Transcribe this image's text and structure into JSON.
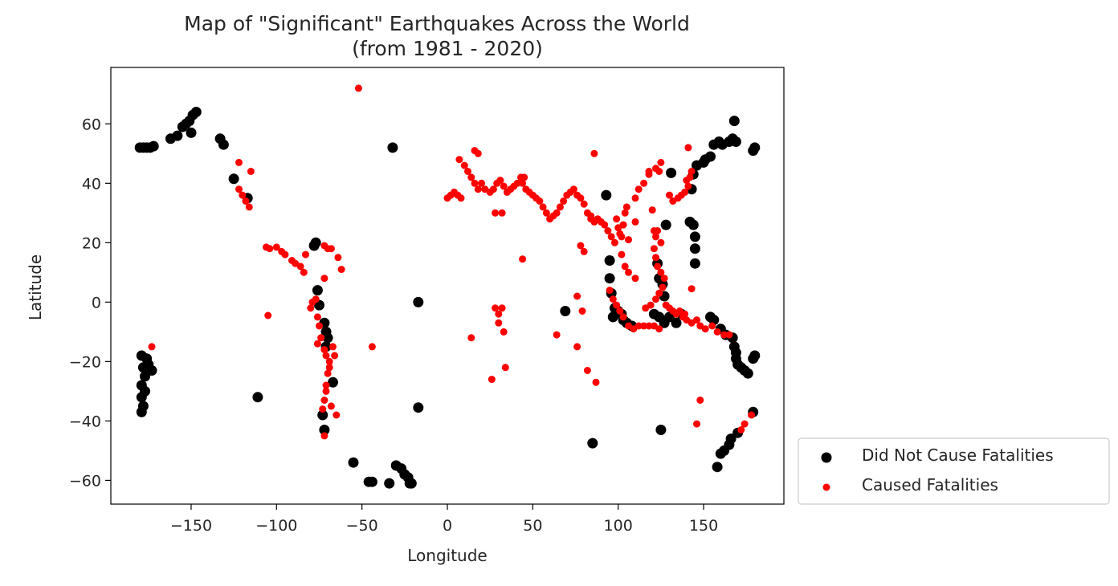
{
  "chart_data": {
    "type": "scatter",
    "title": "Map of \"Significant\" Earthquakes Across the World",
    "subtitle": "(from 1981 - 2020)",
    "xlabel": "Longitude",
    "ylabel": "Latitude",
    "xlim": [
      -197,
      197
    ],
    "ylim": [
      -68,
      79
    ],
    "xticks": [
      -150,
      -100,
      -50,
      0,
      50,
      100,
      150
    ],
    "yticks": [
      -60,
      -40,
      -20,
      0,
      20,
      40,
      60
    ],
    "xtick_labels": [
      "−150",
      "−100",
      "−50",
      "0",
      "50",
      "100",
      "150"
    ],
    "ytick_labels": [
      "−60",
      "−40",
      "−20",
      "0",
      "20",
      "40",
      "60"
    ],
    "grid": false,
    "legend_position": "outside-lower-right",
    "series": [
      {
        "name": "Did Not Cause Fatalities",
        "color": "#000000",
        "points": [
          [
            -180,
            52
          ],
          [
            -178,
            52
          ],
          [
            -176,
            52
          ],
          [
            -174,
            52
          ],
          [
            -172,
            52.5
          ],
          [
            -162,
            55
          ],
          [
            -158,
            56
          ],
          [
            -155,
            59
          ],
          [
            -153,
            60
          ],
          [
            -151,
            61
          ],
          [
            -149,
            63
          ],
          [
            -147,
            64
          ],
          [
            -150,
            57
          ],
          [
            -133,
            55
          ],
          [
            -131,
            53
          ],
          [
            -125,
            41.5
          ],
          [
            -117,
            35
          ],
          [
            -32,
            52
          ],
          [
            -179,
            -18
          ],
          [
            -178,
            -22
          ],
          [
            -177,
            -25
          ],
          [
            -179,
            -28
          ],
          [
            -177,
            -30
          ],
          [
            -179,
            -32
          ],
          [
            -178,
            -35
          ],
          [
            -179,
            -37
          ],
          [
            -175,
            -21
          ],
          [
            -173,
            -23
          ],
          [
            -176,
            -19
          ],
          [
            -111,
            -32
          ],
          [
            -17,
            0
          ],
          [
            -17,
            -35.5
          ],
          [
            -55,
            -54
          ],
          [
            -46,
            -60.5
          ],
          [
            -44,
            -60.5
          ],
          [
            -34,
            -61
          ],
          [
            -30,
            -55
          ],
          [
            -27,
            -56
          ],
          [
            -25,
            -58
          ],
          [
            -23,
            -59
          ],
          [
            -21,
            -61
          ],
          [
            -22,
            -61
          ],
          [
            -78,
            19
          ],
          [
            -77,
            20
          ],
          [
            -76,
            4
          ],
          [
            -75,
            -1
          ],
          [
            -72,
            -7
          ],
          [
            -71,
            -10
          ],
          [
            -70,
            -12
          ],
          [
            -71,
            -15
          ],
          [
            -73,
            -38
          ],
          [
            -72,
            -43
          ],
          [
            -67,
            -27
          ],
          [
            69,
            -3
          ],
          [
            93,
            36
          ],
          [
            95,
            14
          ],
          [
            95,
            8
          ],
          [
            96,
            3
          ],
          [
            98,
            -2
          ],
          [
            97,
            -5
          ],
          [
            100,
            -3
          ],
          [
            102,
            -4
          ],
          [
            103,
            -6
          ],
          [
            105,
            -7
          ],
          [
            108,
            -8
          ],
          [
            121,
            -4
          ],
          [
            124,
            -5
          ],
          [
            127,
            -7
          ],
          [
            130,
            -5
          ],
          [
            134,
            -7
          ],
          [
            137,
            -4
          ],
          [
            123,
            13
          ],
          [
            124,
            8
          ],
          [
            126,
            6
          ],
          [
            127,
            2
          ],
          [
            128,
            26
          ],
          [
            131,
            43.5
          ],
          [
            142,
            27
          ],
          [
            144,
            26
          ],
          [
            145,
            22
          ],
          [
            145,
            18
          ],
          [
            145,
            13
          ],
          [
            143,
            38
          ],
          [
            144,
            43
          ],
          [
            146,
            46
          ],
          [
            150,
            47
          ],
          [
            151,
            48
          ],
          [
            154,
            49
          ],
          [
            156,
            53
          ],
          [
            159,
            54
          ],
          [
            161,
            53
          ],
          [
            165,
            54
          ],
          [
            167,
            55
          ],
          [
            169,
            54
          ],
          [
            168,
            61
          ],
          [
            179,
            51
          ],
          [
            180,
            52
          ],
          [
            154,
            -5
          ],
          [
            156,
            -6
          ],
          [
            160,
            -9
          ],
          [
            163,
            -11
          ],
          [
            167,
            -12
          ],
          [
            168,
            -15
          ],
          [
            169,
            -17
          ],
          [
            169,
            -19
          ],
          [
            170,
            -21
          ],
          [
            172,
            -22
          ],
          [
            174,
            -23
          ],
          [
            176,
            -24
          ],
          [
            179,
            -19
          ],
          [
            180,
            -18
          ],
          [
            179,
            -37
          ],
          [
            170,
            -44
          ],
          [
            166,
            -46
          ],
          [
            165,
            -48
          ],
          [
            162,
            -50
          ],
          [
            160,
            -51
          ],
          [
            158,
            -55.5
          ],
          [
            85,
            -47.5
          ],
          [
            125,
            -43
          ]
        ]
      },
      {
        "name": "Caused Fatalities",
        "color": "#ff0000",
        "points": [
          [
            -52,
            72
          ],
          [
            -122,
            47
          ],
          [
            -122,
            38
          ],
          [
            -120,
            36
          ],
          [
            -118,
            34
          ],
          [
            -116,
            32
          ],
          [
            -115,
            44
          ],
          [
            -106,
            18.5
          ],
          [
            -104,
            18
          ],
          [
            -100,
            18.5
          ],
          [
            -97,
            17
          ],
          [
            -95,
            16
          ],
          [
            -91,
            14
          ],
          [
            -89,
            13
          ],
          [
            -86,
            12
          ],
          [
            -84,
            10
          ],
          [
            -83,
            16
          ],
          [
            -80,
            -2
          ],
          [
            -79,
            0
          ],
          [
            -77,
            1
          ],
          [
            -76,
            -5
          ],
          [
            -75,
            -8
          ],
          [
            -74,
            -12
          ],
          [
            -76,
            -14
          ],
          [
            -72,
            -16
          ],
          [
            -71,
            -18
          ],
          [
            -69,
            -20
          ],
          [
            -70,
            -24
          ],
          [
            -71,
            -28
          ],
          [
            -71,
            -30
          ],
          [
            -72,
            -33
          ],
          [
            -73,
            -36
          ],
          [
            -72,
            -45
          ],
          [
            -67,
            -15
          ],
          [
            -66,
            -18
          ],
          [
            -69,
            -22
          ],
          [
            -68,
            -35
          ],
          [
            -65,
            -38
          ],
          [
            -72,
            19
          ],
          [
            -70,
            18
          ],
          [
            -68,
            18
          ],
          [
            -64,
            15
          ],
          [
            -62,
            11
          ],
          [
            -72,
            8
          ],
          [
            -105,
            -4.5
          ],
          [
            -173,
            -15
          ],
          [
            -44,
            -15
          ],
          [
            7,
            48
          ],
          [
            10,
            46
          ],
          [
            12,
            44
          ],
          [
            14,
            42
          ],
          [
            16,
            40
          ],
          [
            18,
            38
          ],
          [
            20,
            40
          ],
          [
            22,
            38
          ],
          [
            25,
            37
          ],
          [
            27,
            38
          ],
          [
            29,
            40
          ],
          [
            31,
            41
          ],
          [
            33,
            39
          ],
          [
            35,
            37
          ],
          [
            37,
            38
          ],
          [
            39,
            39
          ],
          [
            41,
            40
          ],
          [
            43,
            42
          ],
          [
            45,
            42
          ],
          [
            44,
            40
          ],
          [
            46,
            38
          ],
          [
            48,
            37
          ],
          [
            50,
            36
          ],
          [
            52,
            35
          ],
          [
            54,
            34
          ],
          [
            56,
            32
          ],
          [
            58,
            30
          ],
          [
            60,
            28
          ],
          [
            62,
            29
          ],
          [
            64,
            30
          ],
          [
            66,
            32
          ],
          [
            68,
            34
          ],
          [
            70,
            36
          ],
          [
            72,
            37
          ],
          [
            74,
            38
          ],
          [
            76,
            36
          ],
          [
            78,
            35
          ],
          [
            80,
            33
          ],
          [
            82,
            30
          ],
          [
            84,
            29
          ],
          [
            86,
            27
          ],
          [
            88,
            28
          ],
          [
            90,
            27
          ],
          [
            92,
            26
          ],
          [
            94,
            24
          ],
          [
            96,
            22
          ],
          [
            98,
            20
          ],
          [
            99,
            28
          ],
          [
            100,
            25
          ],
          [
            101,
            23
          ],
          [
            102,
            22
          ],
          [
            103,
            26
          ],
          [
            104,
            30
          ],
          [
            105,
            32
          ],
          [
            110,
            35
          ],
          [
            112,
            38
          ],
          [
            115,
            40
          ],
          [
            118,
            44
          ],
          [
            122,
            45
          ],
          [
            125,
            47
          ],
          [
            16,
            51
          ],
          [
            18,
            50
          ],
          [
            86,
            50
          ],
          [
            0,
            35
          ],
          [
            2,
            36
          ],
          [
            4,
            37
          ],
          [
            6,
            36
          ],
          [
            8,
            35
          ],
          [
            28,
            30
          ],
          [
            32,
            30
          ],
          [
            44,
            14.5
          ],
          [
            14,
            -12
          ],
          [
            28,
            -2
          ],
          [
            30,
            -4
          ],
          [
            32,
            -2
          ],
          [
            30,
            -7
          ],
          [
            33,
            -10
          ],
          [
            34,
            -22
          ],
          [
            26,
            -26
          ],
          [
            64,
            -11
          ],
          [
            76,
            -15
          ],
          [
            82,
            -23
          ],
          [
            87,
            -27
          ],
          [
            76,
            2
          ],
          [
            79,
            -3
          ],
          [
            80,
            17
          ],
          [
            78,
            19
          ],
          [
            95,
            4
          ],
          [
            97,
            1
          ],
          [
            99,
            -1
          ],
          [
            101,
            -3
          ],
          [
            103,
            -5
          ],
          [
            106,
            -8
          ],
          [
            109,
            -9
          ],
          [
            112,
            -8
          ],
          [
            115,
            -8
          ],
          [
            118,
            -8
          ],
          [
            121,
            -8
          ],
          [
            124,
            -9
          ],
          [
            119,
            -1
          ],
          [
            122,
            1
          ],
          [
            124,
            3
          ],
          [
            126,
            5
          ],
          [
            127,
            8
          ],
          [
            125,
            10
          ],
          [
            123,
            12
          ],
          [
            122,
            15
          ],
          [
            121,
            18
          ],
          [
            122,
            22
          ],
          [
            123,
            24
          ],
          [
            121,
            24
          ],
          [
            125,
            20
          ],
          [
            128,
            -1
          ],
          [
            130,
            -2
          ],
          [
            132,
            -3
          ],
          [
            134,
            -4
          ],
          [
            136,
            -3
          ],
          [
            138,
            -5
          ],
          [
            140,
            -6
          ],
          [
            143,
            -7
          ],
          [
            146,
            -6
          ],
          [
            148,
            -8
          ],
          [
            151,
            -9
          ],
          [
            155,
            -8
          ],
          [
            158,
            -10
          ],
          [
            162,
            -11
          ],
          [
            165,
            -11
          ],
          [
            130,
            36
          ],
          [
            132,
            34
          ],
          [
            135,
            35
          ],
          [
            137,
            36
          ],
          [
            139,
            37
          ],
          [
            141,
            39
          ],
          [
            142,
            42
          ],
          [
            143,
            44
          ],
          [
            140,
            41
          ],
          [
            141,
            52
          ],
          [
            148,
            -33
          ],
          [
            146,
            -41
          ],
          [
            172,
            -43
          ],
          [
            174,
            -41
          ],
          [
            178,
            -38
          ],
          [
            118,
            43
          ],
          [
            124,
            44
          ],
          [
            116,
            -2
          ],
          [
            110,
            8
          ],
          [
            106,
            10
          ],
          [
            104,
            12
          ],
          [
            102,
            16
          ],
          [
            106,
            21
          ],
          [
            110,
            27
          ],
          [
            120,
            31
          ],
          [
            143,
            4.5
          ],
          [
            139,
            -4
          ],
          [
            84,
            28
          ]
        ]
      }
    ]
  }
}
